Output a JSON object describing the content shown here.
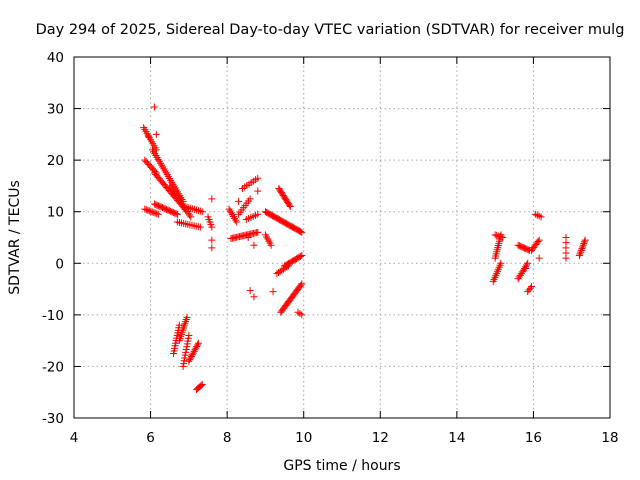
{
  "chart_data": {
    "type": "scatter",
    "title": "Day 294 of 2025, Sidereal Day-to-day VTEC variation (SDTVAR) for receiver mulg",
    "xlabel": "GPS time / hours",
    "ylabel": "SDTVAR / TECUs",
    "xlim": [
      4,
      18
    ],
    "ylim": [
      -30,
      40
    ],
    "xticks": [
      "4",
      "6",
      "8",
      "10",
      "12",
      "14",
      "16",
      "18"
    ],
    "yticks": [
      "-30",
      "-20",
      "-10",
      "0",
      "10",
      "20",
      "30",
      "40"
    ],
    "grid": true,
    "marker": "plus",
    "color": "#ff0000",
    "series": [
      {
        "name": "SDTVAR",
        "segments": [
          {
            "x0": 5.82,
            "y0": 26.3,
            "x1": 6.15,
            "y1": 22.0,
            "n": 12
          },
          {
            "x0": 5.85,
            "y0": 20.0,
            "x1": 6.15,
            "y1": 17.5,
            "n": 10
          },
          {
            "x0": 5.85,
            "y0": 10.5,
            "x1": 6.2,
            "y1": 9.5,
            "n": 10
          },
          {
            "x0": 6.05,
            "y0": 22.0,
            "x1": 6.85,
            "y1": 12.0,
            "n": 28
          },
          {
            "x0": 6.1,
            "y0": 17.5,
            "x1": 6.9,
            "y1": 10.5,
            "n": 26
          },
          {
            "x0": 6.1,
            "y0": 11.5,
            "x1": 6.7,
            "y1": 9.5,
            "n": 18
          },
          {
            "x0": 6.5,
            "y0": 15.0,
            "x1": 7.05,
            "y1": 9.0,
            "n": 18
          },
          {
            "x0": 6.7,
            "y0": 8.0,
            "x1": 7.3,
            "y1": 7.0,
            "n": 12
          },
          {
            "x0": 6.9,
            "y0": 11.0,
            "x1": 7.35,
            "y1": 10.0,
            "n": 10
          },
          {
            "x0": 6.6,
            "y0": -17.5,
            "x1": 6.75,
            "y1": -12.0,
            "n": 12
          },
          {
            "x0": 6.75,
            "y0": -15.0,
            "x1": 6.95,
            "y1": -10.5,
            "n": 12
          },
          {
            "x0": 6.85,
            "y0": -20.0,
            "x1": 7.0,
            "y1": -14.0,
            "n": 12
          },
          {
            "x0": 7.0,
            "y0": -19.0,
            "x1": 7.25,
            "y1": -15.5,
            "n": 12
          },
          {
            "x0": 7.2,
            "y0": -24.5,
            "x1": 7.35,
            "y1": -23.5,
            "n": 6
          },
          {
            "x0": 7.5,
            "y0": 9.0,
            "x1": 7.6,
            "y1": 7.0,
            "n": 5
          },
          {
            "x0": 8.05,
            "y0": 10.5,
            "x1": 8.25,
            "y1": 8.0,
            "n": 8
          },
          {
            "x0": 8.1,
            "y0": 4.8,
            "x1": 8.8,
            "y1": 6.0,
            "n": 20
          },
          {
            "x0": 8.3,
            "y0": 9.5,
            "x1": 8.6,
            "y1": 12.5,
            "n": 8
          },
          {
            "x0": 8.4,
            "y0": 14.5,
            "x1": 8.8,
            "y1": 16.5,
            "n": 8
          },
          {
            "x0": 8.5,
            "y0": 8.5,
            "x1": 8.8,
            "y1": 9.5,
            "n": 6
          },
          {
            "x0": 9.0,
            "y0": 10.0,
            "x1": 9.95,
            "y1": 6.0,
            "n": 32
          },
          {
            "x0": 9.0,
            "y0": 5.5,
            "x1": 9.15,
            "y1": 3.5,
            "n": 6
          },
          {
            "x0": 9.35,
            "y0": 14.5,
            "x1": 9.65,
            "y1": 11.0,
            "n": 14
          },
          {
            "x0": 9.3,
            "y0": -2.0,
            "x1": 9.6,
            "y1": -0.5,
            "n": 8
          },
          {
            "x0": 9.5,
            "y0": -0.5,
            "x1": 9.95,
            "y1": 1.5,
            "n": 14
          },
          {
            "x0": 9.4,
            "y0": -9.5,
            "x1": 9.95,
            "y1": -4.0,
            "n": 22
          },
          {
            "x0": 9.85,
            "y0": -9.5,
            "x1": 9.95,
            "y1": -10.0,
            "n": 3
          },
          {
            "x0": 14.95,
            "y0": -3.5,
            "x1": 15.15,
            "y1": 0.0,
            "n": 10
          },
          {
            "x0": 15.0,
            "y0": 1.0,
            "x1": 15.15,
            "y1": 5.5,
            "n": 12
          },
          {
            "x0": 15.0,
            "y0": 5.5,
            "x1": 15.2,
            "y1": 5.0,
            "n": 6
          },
          {
            "x0": 15.6,
            "y0": -3.0,
            "x1": 15.85,
            "y1": 0.0,
            "n": 10
          },
          {
            "x0": 15.6,
            "y0": 3.5,
            "x1": 15.9,
            "y1": 2.5,
            "n": 10
          },
          {
            "x0": 15.85,
            "y0": -5.5,
            "x1": 15.95,
            "y1": -4.5,
            "n": 4
          },
          {
            "x0": 15.95,
            "y0": 2.5,
            "x1": 16.15,
            "y1": 4.5,
            "n": 8
          },
          {
            "x0": 16.05,
            "y0": 9.5,
            "x1": 16.2,
            "y1": 9.0,
            "n": 4
          },
          {
            "x0": 16.85,
            "y0": 1.0,
            "x1": 16.85,
            "y1": 5.0,
            "n": 5
          },
          {
            "x0": 17.2,
            "y0": 1.5,
            "x1": 17.35,
            "y1": 4.5,
            "n": 10
          }
        ],
        "points": [
          {
            "x": 6.1,
            "y": 30.3
          },
          {
            "x": 6.15,
            "y": 25.0
          },
          {
            "x": 5.95,
            "y": 24.5
          },
          {
            "x": 7.6,
            "y": 12.5
          },
          {
            "x": 7.6,
            "y": 4.5
          },
          {
            "x": 7.6,
            "y": 3.0
          },
          {
            "x": 8.3,
            "y": 12.0
          },
          {
            "x": 8.55,
            "y": 5.0
          },
          {
            "x": 8.7,
            "y": 3.5
          },
          {
            "x": 8.6,
            "y": -5.3
          },
          {
            "x": 8.7,
            "y": -6.5
          },
          {
            "x": 8.8,
            "y": 14.0
          },
          {
            "x": 9.2,
            "y": -5.5
          },
          {
            "x": 16.15,
            "y": 1.0
          },
          {
            "x": 15.8,
            "y": -1.0
          }
        ]
      }
    ]
  }
}
